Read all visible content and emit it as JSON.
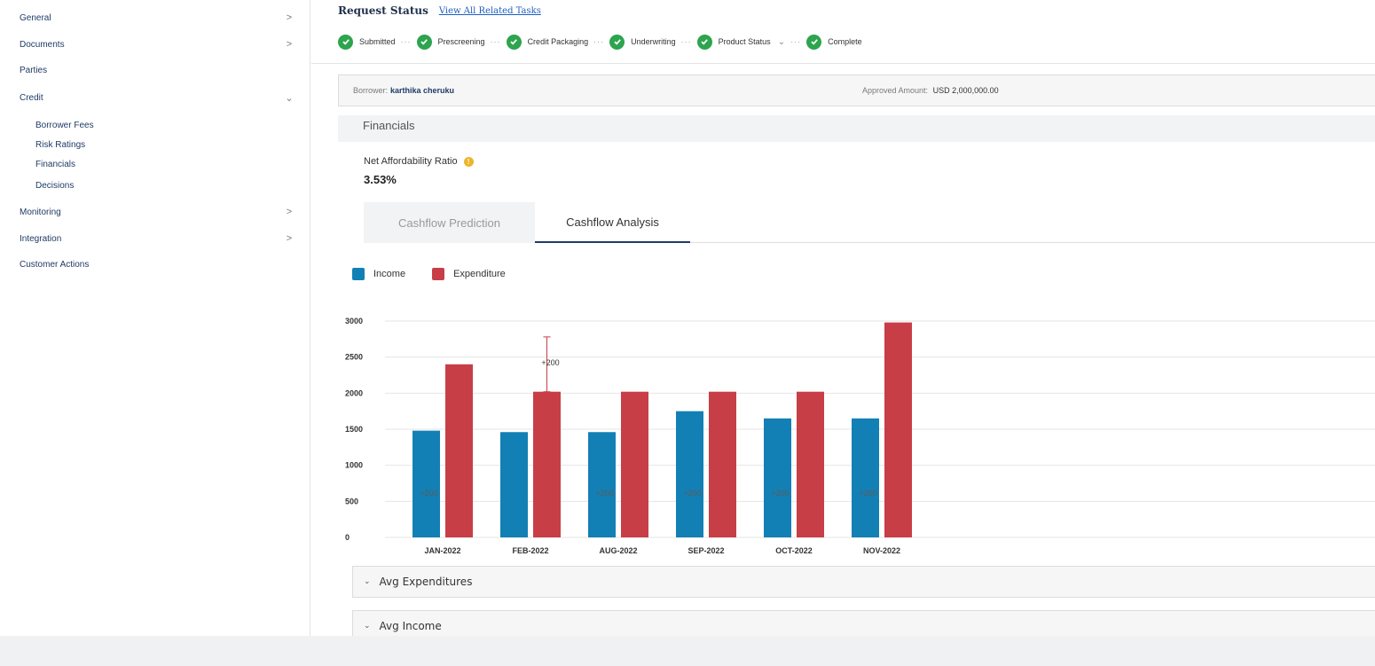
{
  "sidebar": {
    "items": [
      {
        "label": "General",
        "chevron": ">"
      },
      {
        "label": "Documents",
        "chevron": ">"
      },
      {
        "label": "Parties",
        "chevron": ""
      },
      {
        "label": "Credit",
        "chevron": "v"
      },
      {
        "label": "Monitoring",
        "chevron": ">"
      },
      {
        "label": "Integration",
        "chevron": ">"
      },
      {
        "label": "Customer Actions",
        "chevron": ""
      }
    ],
    "credit_sub": [
      "Borrower Fees",
      "Risk Ratings",
      "Financials",
      "Decisions"
    ]
  },
  "request": {
    "title": "Request Status",
    "link": "View All Related Tasks",
    "steps": [
      "Submitted",
      "Prescreening",
      "Credit Packaging",
      "Underwriting",
      "Product Status",
      "Complete"
    ]
  },
  "borrower": {
    "label": "Borrower:",
    "name": "karthika cheruku",
    "amount_label": "Approved Amount:",
    "amount": "USD 2,000,000.00"
  },
  "financials": {
    "header": "Financials",
    "nar_label": "Net Affordability Ratio",
    "nar_value": "3.53%",
    "tabs": [
      "Cashflow Prediction",
      "Cashflow Analysis"
    ],
    "active_tab": "Cashflow Analysis"
  },
  "legend": {
    "income": "Income",
    "expenditure": "Expenditure"
  },
  "colors": {
    "income": "#1380b5",
    "expenditure": "#c73e47",
    "check": "#2da44e"
  },
  "chart_data": {
    "type": "bar",
    "categories": [
      "JAN-2022",
      "FEB-2022",
      "AUG-2022",
      "SEP-2022",
      "OCT-2022",
      "NOV-2022"
    ],
    "series": [
      {
        "name": "Income",
        "values": [
          1480,
          1460,
          1460,
          1750,
          1650,
          1650
        ]
      },
      {
        "name": "Expenditure",
        "values": [
          2400,
          2020,
          2020,
          2020,
          2020,
          2980
        ]
      }
    ],
    "ylim": [
      0,
      3000
    ],
    "yticks": [
      0,
      500,
      1000,
      1500,
      2000,
      2500,
      3000
    ],
    "annotations": {
      "income_label": "+200",
      "feb_error": {
        "category": "FEB-2022",
        "from": 2020,
        "to": 2780,
        "label": "+200"
      }
    },
    "grid": true
  },
  "accordions": [
    "Avg Expenditures",
    "Avg Income"
  ]
}
